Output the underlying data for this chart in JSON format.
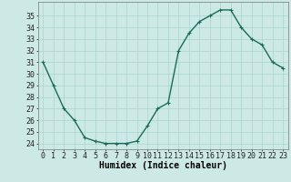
{
  "x": [
    0,
    1,
    2,
    3,
    4,
    5,
    6,
    7,
    8,
    9,
    10,
    11,
    12,
    13,
    14,
    15,
    16,
    17,
    18,
    19,
    20,
    21,
    22,
    23
  ],
  "y": [
    31,
    29,
    27,
    26,
    24.5,
    24.2,
    24,
    24,
    24,
    24.2,
    25.5,
    27,
    27.5,
    32,
    33.5,
    34.5,
    35,
    35.5,
    35.5,
    34,
    33,
    32.5,
    31,
    30.5
  ],
  "line_color": "#1a6b5a",
  "marker": "+",
  "marker_size": 3,
  "marker_linewidth": 0.8,
  "bg_color": "#cce9e5",
  "grid_color": "#aad4cf",
  "xlabel": "Humidex (Indice chaleur)",
  "xlabel_fontsize": 7,
  "tick_fontsize": 6,
  "ylim": [
    23.5,
    36.2
  ],
  "xlim": [
    -0.5,
    23.5
  ],
  "yticks": [
    24,
    25,
    26,
    27,
    28,
    29,
    30,
    31,
    32,
    33,
    34,
    35
  ],
  "xticks": [
    0,
    1,
    2,
    3,
    4,
    5,
    6,
    7,
    8,
    9,
    10,
    11,
    12,
    13,
    14,
    15,
    16,
    17,
    18,
    19,
    20,
    21,
    22,
    23
  ],
  "linewidth": 1.0
}
